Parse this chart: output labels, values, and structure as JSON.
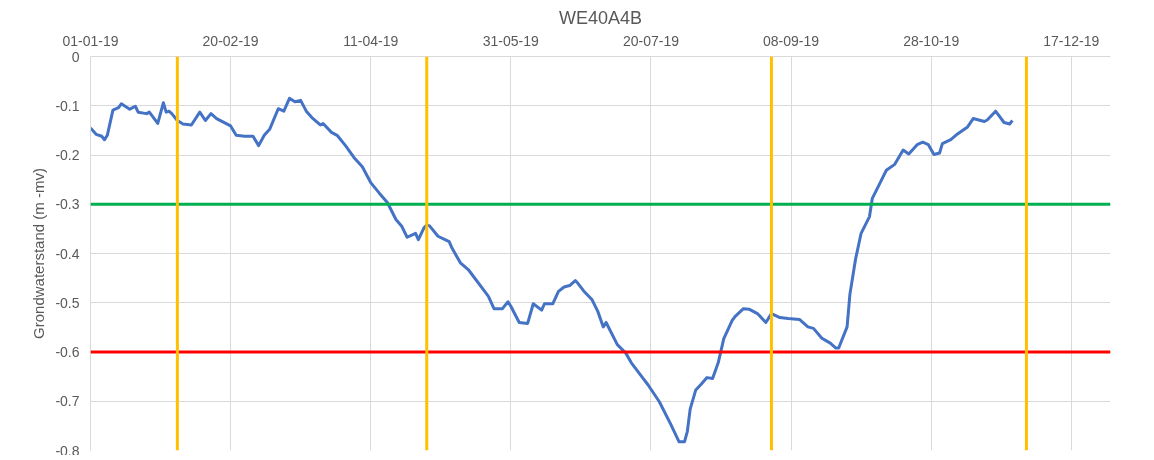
{
  "chart_data": {
    "type": "line",
    "title": "WE40A4B",
    "ylabel": "Grondwaterstand (m -mv)",
    "x": [
      "2019-01-01",
      "2019-01-03",
      "2019-01-05",
      "2019-01-06",
      "2019-01-07",
      "2019-01-09",
      "2019-01-11",
      "2019-01-12",
      "2019-01-15",
      "2019-01-17",
      "2019-01-18",
      "2019-01-21",
      "2019-01-22",
      "2019-01-25",
      "2019-01-27",
      "2019-01-28",
      "2019-01-29",
      "2019-01-30",
      "2019-02-01",
      "2019-02-03",
      "2019-02-06",
      "2019-02-09",
      "2019-02-11",
      "2019-02-13",
      "2019-02-15",
      "2019-02-20",
      "2019-02-22",
      "2019-02-25",
      "2019-02-28",
      "2019-03-02",
      "2019-03-04",
      "2019-03-06",
      "2019-03-09",
      "2019-03-11",
      "2019-03-13",
      "2019-03-15",
      "2019-03-17",
      "2019-03-19",
      "2019-03-21",
      "2019-03-24",
      "2019-03-25",
      "2019-03-28",
      "2019-03-30",
      "2019-04-02",
      "2019-04-05",
      "2019-04-08",
      "2019-04-11",
      "2019-04-14",
      "2019-04-17",
      "2019-04-20",
      "2019-04-22",
      "2019-04-24",
      "2019-04-27",
      "2019-04-28",
      "2019-04-30",
      "2019-05-01",
      "2019-05-02",
      "2019-05-05",
      "2019-05-09",
      "2019-05-10",
      "2019-05-13",
      "2019-05-16",
      "2019-05-21",
      "2019-05-23",
      "2019-05-25",
      "2019-05-28",
      "2019-05-30",
      "2019-05-31",
      "2019-06-03",
      "2019-06-06",
      "2019-06-08",
      "2019-06-11",
      "2019-06-12",
      "2019-06-15",
      "2019-06-17",
      "2019-06-19",
      "2019-06-21",
      "2019-06-23",
      "2019-06-24",
      "2019-06-26",
      "2019-06-29",
      "2019-07-01",
      "2019-07-03",
      "2019-07-04",
      "2019-07-08",
      "2019-07-11",
      "2019-07-13",
      "2019-07-17",
      "2019-07-19",
      "2019-07-23",
      "2019-07-27",
      "2019-07-30",
      "2019-08-01",
      "2019-08-02",
      "2019-08-03",
      "2019-08-05",
      "2019-08-07",
      "2019-08-09",
      "2019-08-11",
      "2019-08-13",
      "2019-08-15",
      "2019-08-18",
      "2019-08-19",
      "2019-08-22",
      "2019-08-24",
      "2019-08-27",
      "2019-08-30",
      "2019-09-01",
      "2019-09-04",
      "2019-09-07",
      "2019-09-11",
      "2019-09-14",
      "2019-09-16",
      "2019-09-19",
      "2019-09-22",
      "2019-09-24",
      "2019-09-25",
      "2019-09-28",
      "2019-09-29",
      "2019-10-01",
      "2019-10-03",
      "2019-10-06",
      "2019-10-07",
      "2019-10-10",
      "2019-10-12",
      "2019-10-15",
      "2019-10-18",
      "2019-10-20",
      "2019-10-23",
      "2019-10-25",
      "2019-10-27",
      "2019-10-29",
      "2019-10-31",
      "2019-11-01",
      "2019-11-04",
      "2019-11-06",
      "2019-11-10",
      "2019-11-12",
      "2019-11-16",
      "2019-11-17",
      "2019-11-20",
      "2019-11-23",
      "2019-11-25",
      "2019-11-26"
    ],
    "series": [
      {
        "color": "#4472c4",
        "values": [
          -0.145,
          -0.158,
          -0.162,
          -0.169,
          -0.16,
          -0.109,
          -0.104,
          -0.096,
          -0.107,
          -0.101,
          -0.113,
          -0.116,
          -0.113,
          -0.136,
          -0.094,
          -0.113,
          -0.111,
          -0.116,
          -0.13,
          -0.137,
          -0.139,
          -0.113,
          -0.13,
          -0.116,
          -0.126,
          -0.141,
          -0.16,
          -0.162,
          -0.162,
          -0.181,
          -0.16,
          -0.147,
          -0.106,
          -0.111,
          -0.085,
          -0.092,
          -0.089,
          -0.111,
          -0.124,
          -0.139,
          -0.136,
          -0.154,
          -0.16,
          -0.181,
          -0.205,
          -0.224,
          -0.256,
          -0.277,
          -0.297,
          -0.331,
          -0.344,
          -0.367,
          -0.359,
          -0.372,
          -0.348,
          -0.342,
          -0.344,
          -0.365,
          -0.376,
          -0.389,
          -0.419,
          -0.434,
          -0.472,
          -0.487,
          -0.512,
          -0.512,
          -0.498,
          -0.507,
          -0.54,
          -0.542,
          -0.502,
          -0.515,
          -0.502,
          -0.502,
          -0.477,
          -0.468,
          -0.465,
          -0.455,
          -0.461,
          -0.476,
          -0.494,
          -0.517,
          -0.549,
          -0.54,
          -0.585,
          -0.602,
          -0.622,
          -0.652,
          -0.667,
          -0.701,
          -0.746,
          -0.782,
          -0.782,
          -0.761,
          -0.716,
          -0.677,
          -0.665,
          -0.652,
          -0.654,
          -0.622,
          -0.573,
          -0.536,
          -0.528,
          -0.512,
          -0.513,
          -0.522,
          -0.54,
          -0.522,
          -0.53,
          -0.532,
          -0.534,
          -0.549,
          -0.552,
          -0.572,
          -0.582,
          -0.592,
          -0.592,
          -0.549,
          -0.483,
          -0.412,
          -0.359,
          -0.325,
          -0.288,
          -0.254,
          -0.231,
          -0.219,
          -0.19,
          -0.198,
          -0.179,
          -0.174,
          -0.179,
          -0.199,
          -0.196,
          -0.177,
          -0.169,
          -0.159,
          -0.143,
          -0.126,
          -0.132,
          -0.129,
          -0.111,
          -0.134,
          -0.137,
          -0.13
        ]
      }
    ],
    "xlim": [
      "2019-01-01",
      "2019-12-31"
    ],
    "xticks": [
      {
        "value": "2019-01-01",
        "label": "01-01-19"
      },
      {
        "value": "2019-02-20",
        "label": "20-02-19"
      },
      {
        "value": "2019-04-11",
        "label": "11-04-19"
      },
      {
        "value": "2019-05-31",
        "label": "31-05-19"
      },
      {
        "value": "2019-07-20",
        "label": "20-07-19"
      },
      {
        "value": "2019-09-08",
        "label": "08-09-19"
      },
      {
        "value": "2019-10-28",
        "label": "28-10-19"
      },
      {
        "value": "2019-12-17",
        "label": "17-12-19"
      }
    ],
    "ylim": [
      -0.8,
      0
    ],
    "yticks": [
      0,
      -0.1,
      -0.2,
      -0.3,
      -0.4,
      -0.5,
      -0.6,
      -0.7,
      -0.8
    ],
    "ref_lines": [
      {
        "axis": "y",
        "value": -0.3,
        "color": "#00b050"
      },
      {
        "axis": "y",
        "value": -0.6,
        "color": "#ff0000"
      },
      {
        "axis": "x",
        "value": "2019-02-01",
        "color": "#ffc000"
      },
      {
        "axis": "x",
        "value": "2019-05-01",
        "color": "#ffc000"
      },
      {
        "axis": "x",
        "value": "2019-09-01",
        "color": "#ffc000"
      },
      {
        "axis": "x",
        "value": "2019-12-01",
        "color": "#ffc000"
      }
    ],
    "grid": true,
    "marker": "none",
    "line_style": "solid"
  }
}
